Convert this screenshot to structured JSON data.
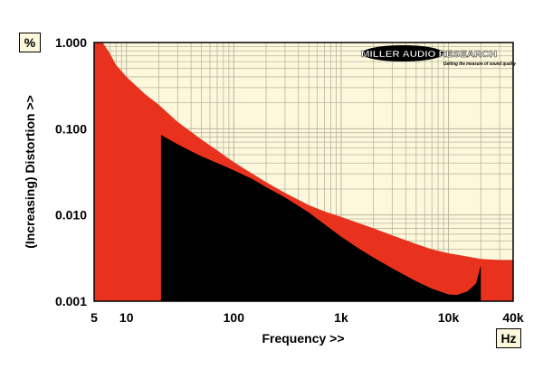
{
  "units": {
    "y": "%",
    "x": "Hz"
  },
  "logo": {
    "brand": "MILLER AUDIO RESEARCH",
    "tagline": "Getting the measure of sound quality"
  },
  "colors": {
    "plot_bg": "#fdf8dc",
    "red_fill": "#e8321e",
    "black_fill": "#000000",
    "grid": "#b9b6a0"
  },
  "chart_data": {
    "type": "area",
    "x_scale": "log",
    "y_scale": "log",
    "xlabel": "Frequency >>",
    "ylabel": "(Increasing) Distortion >>",
    "xlim": [
      5,
      40000
    ],
    "ylim": [
      0.001,
      1.0
    ],
    "x_ticks": [
      {
        "value": 5,
        "label": "5"
      },
      {
        "value": 10,
        "label": "10"
      },
      {
        "value": 100,
        "label": "100"
      },
      {
        "value": 1000,
        "label": "1k"
      },
      {
        "value": 10000,
        "label": "10k"
      },
      {
        "value": 40000,
        "label": "40k"
      }
    ],
    "y_ticks": [
      {
        "value": 1.0,
        "label": "1.000"
      },
      {
        "value": 0.1,
        "label": "0.100"
      },
      {
        "value": 0.01,
        "label": "0.010"
      },
      {
        "value": 0.001,
        "label": "0.001"
      }
    ],
    "grid": true,
    "series": [
      {
        "color": "#e8321e",
        "points": [
          [
            5,
            1.0
          ],
          [
            6,
            1.0
          ],
          [
            7,
            0.75
          ],
          [
            8,
            0.55
          ],
          [
            10,
            0.4
          ],
          [
            15,
            0.25
          ],
          [
            20,
            0.19
          ],
          [
            30,
            0.12
          ],
          [
            50,
            0.075
          ],
          [
            70,
            0.056
          ],
          [
            100,
            0.041
          ],
          [
            150,
            0.03
          ],
          [
            200,
            0.024
          ],
          [
            300,
            0.018
          ],
          [
            500,
            0.013
          ],
          [
            700,
            0.011
          ],
          [
            1000,
            0.0095
          ],
          [
            2000,
            0.007
          ],
          [
            3000,
            0.0058
          ],
          [
            5000,
            0.0046
          ],
          [
            7000,
            0.004
          ],
          [
            10000,
            0.0036
          ],
          [
            15000,
            0.0033
          ],
          [
            20000,
            0.0031
          ],
          [
            30000,
            0.003
          ],
          [
            40000,
            0.003
          ]
        ]
      },
      {
        "color": "#000000",
        "points": [
          [
            21,
            0.085
          ],
          [
            25,
            0.075
          ],
          [
            30,
            0.066
          ],
          [
            40,
            0.055
          ],
          [
            50,
            0.048
          ],
          [
            70,
            0.04
          ],
          [
            100,
            0.033
          ],
          [
            150,
            0.026
          ],
          [
            200,
            0.021
          ],
          [
            300,
            0.016
          ],
          [
            500,
            0.0107
          ],
          [
            700,
            0.0078
          ],
          [
            1000,
            0.0056
          ],
          [
            1500,
            0.004
          ],
          [
            2000,
            0.0032
          ],
          [
            3000,
            0.0024
          ],
          [
            5000,
            0.0017
          ],
          [
            7000,
            0.0014
          ],
          [
            10000,
            0.0012
          ],
          [
            12000,
            0.00118
          ],
          [
            15000,
            0.0013
          ],
          [
            18000,
            0.0016
          ],
          [
            20000,
            0.0026
          ]
        ]
      }
    ]
  }
}
